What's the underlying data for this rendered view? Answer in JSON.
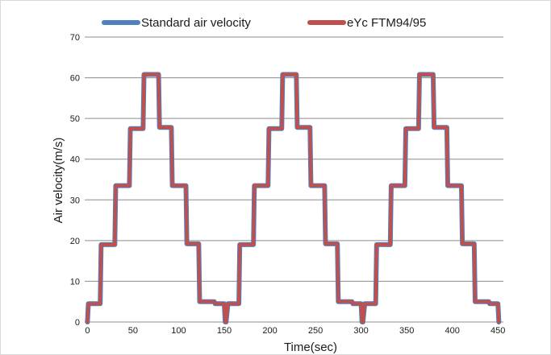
{
  "chart_data": {
    "type": "line",
    "title": "",
    "xlabel": "Time(sec)",
    "ylabel": "Air velocity(m/s)",
    "xlim": [
      0,
      450
    ],
    "ylim": [
      0,
      70
    ],
    "x_ticks": [
      0,
      50,
      100,
      150,
      200,
      250,
      300,
      350,
      400,
      450
    ],
    "y_ticks": [
      0,
      10,
      20,
      30,
      40,
      50,
      60,
      70
    ],
    "grid": "horizontal",
    "legend_position": "top",
    "series": [
      {
        "name": "Standard air velocity",
        "color": "#4f81bd",
        "x": [
          0,
          1,
          14,
          15,
          30,
          31,
          46,
          47,
          61,
          62,
          78,
          79,
          92,
          93,
          108,
          109,
          122,
          123,
          139,
          140,
          150,
          151,
          152,
          154,
          166,
          167,
          182,
          183,
          198,
          199,
          213,
          214,
          229,
          230,
          244,
          245,
          260,
          261,
          274,
          275,
          290,
          291,
          300,
          301,
          302,
          304,
          316,
          317,
          332,
          333,
          348,
          349,
          363,
          364,
          379,
          380,
          394,
          395,
          410,
          411,
          424,
          425,
          440,
          441,
          450,
          451
        ],
        "y": [
          0,
          4.5,
          4.5,
          19,
          19,
          33.5,
          33.5,
          47.5,
          47.5,
          60.8,
          60.8,
          47.8,
          47.8,
          33.5,
          33.5,
          19.2,
          19.2,
          5,
          5,
          4.5,
          4.5,
          0,
          0,
          4.5,
          4.5,
          19,
          19,
          33.5,
          33.5,
          47.5,
          47.5,
          60.8,
          60.8,
          47.8,
          47.8,
          33.5,
          33.5,
          19.2,
          19.2,
          5,
          5,
          4.5,
          4.5,
          0,
          0,
          4.5,
          4.5,
          19,
          19,
          33.5,
          33.5,
          47.5,
          47.5,
          60.8,
          60.8,
          47.8,
          47.8,
          33.5,
          33.5,
          19.2,
          19.2,
          5,
          5,
          4.5,
          4.5,
          0
        ]
      },
      {
        "name": "eYc FTM94/95",
        "color": "#c0504d",
        "x": [
          0,
          1,
          14,
          15,
          30,
          31,
          46,
          47,
          61,
          62,
          78,
          79,
          92,
          93,
          108,
          109,
          122,
          123,
          139,
          140,
          150,
          151,
          152,
          154,
          166,
          167,
          182,
          183,
          198,
          199,
          213,
          214,
          229,
          230,
          244,
          245,
          260,
          261,
          274,
          275,
          290,
          291,
          300,
          301,
          302,
          304,
          316,
          317,
          332,
          333,
          348,
          349,
          363,
          364,
          379,
          380,
          394,
          395,
          410,
          411,
          424,
          425,
          440,
          441,
          450,
          451
        ],
        "y": [
          0,
          4.5,
          4.5,
          19,
          19,
          33.5,
          33.5,
          47.5,
          47.5,
          60.8,
          60.8,
          47.8,
          47.8,
          33.5,
          33.5,
          19.2,
          19.2,
          5,
          5,
          4.5,
          4.5,
          0,
          0,
          4.5,
          4.5,
          19,
          19,
          33.5,
          33.5,
          47.5,
          47.5,
          60.8,
          60.8,
          47.8,
          47.8,
          33.5,
          33.5,
          19.2,
          19.2,
          5,
          5,
          4.5,
          4.5,
          0,
          0,
          4.5,
          4.5,
          19,
          19,
          33.5,
          33.5,
          47.5,
          47.5,
          60.8,
          60.8,
          47.8,
          47.8,
          33.5,
          33.5,
          19.2,
          19.2,
          5,
          5,
          4.5,
          4.5,
          0
        ]
      }
    ]
  }
}
